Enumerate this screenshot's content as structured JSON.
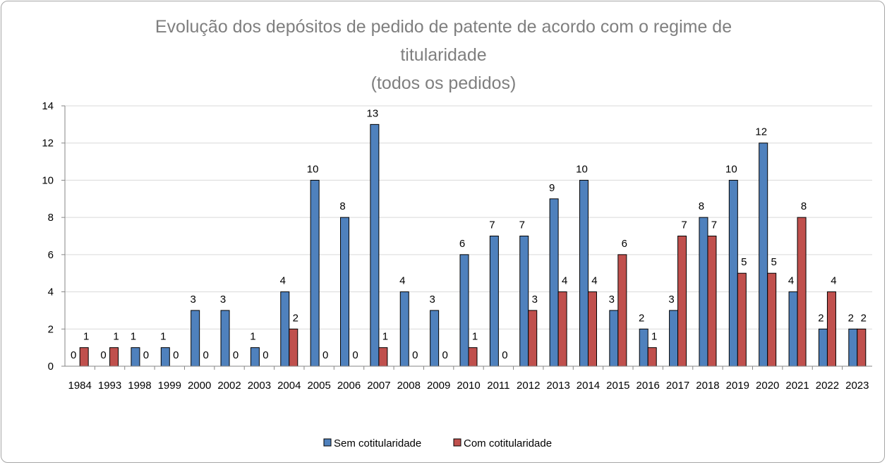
{
  "chart_data": {
    "type": "bar",
    "title_lines": [
      "Evolução dos depósitos de pedido de patente de acordo com o regime de",
      "titularidade",
      "(todos os pedidos)"
    ],
    "categories": [
      "1984",
      "1993",
      "1998",
      "1999",
      "2000",
      "2002",
      "2003",
      "2004",
      "2005",
      "2006",
      "2007",
      "2008",
      "2009",
      "2010",
      "2011",
      "2012",
      "2013",
      "2014",
      "2015",
      "2016",
      "2017",
      "2018",
      "2019",
      "2020",
      "2021",
      "2022",
      "2023"
    ],
    "series": [
      {
        "name": "Sem cotitularidade",
        "color": "#4f81bd",
        "values": [
          0,
          0,
          1,
          1,
          3,
          3,
          1,
          4,
          10,
          8,
          13,
          4,
          3,
          6,
          7,
          7,
          9,
          10,
          3,
          2,
          3,
          8,
          10,
          12,
          4,
          2,
          2
        ]
      },
      {
        "name": "Com cotitularidade",
        "color": "#c0504d",
        "values": [
          1,
          1,
          0,
          0,
          0,
          0,
          0,
          2,
          0,
          0,
          1,
          0,
          0,
          1,
          0,
          3,
          4,
          4,
          6,
          1,
          7,
          7,
          5,
          5,
          8,
          4,
          2
        ]
      }
    ],
    "ylim": [
      0,
      14
    ],
    "yticks": [
      0,
      2,
      4,
      6,
      8,
      10,
      12,
      14
    ],
    "xlabel": "",
    "ylabel": "",
    "grid": true,
    "legend_position": "bottom"
  }
}
